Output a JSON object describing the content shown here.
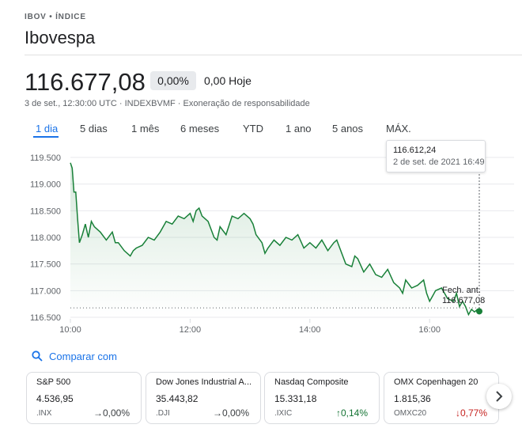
{
  "header": {
    "breadcrumb": "IBOV • ÍNDICE",
    "title": "Ibovespa"
  },
  "quote": {
    "price": "116.677,08",
    "change_pct": "0,00%",
    "change_abs": "0,00 Hoje",
    "meta": "3 de set., 12:30:00 UTC · INDEXBVMF · Exoneração de responsabilidade"
  },
  "range_tabs": [
    "1 dia",
    "5 dias",
    "1 mês",
    "6 meses",
    "YTD",
    "1 ano",
    "5 anos",
    "MÁX."
  ],
  "active_tab": "1 dia",
  "tooltip": {
    "value": "116.612,24",
    "date": "2 de set. de 2021 16:49"
  },
  "prev_close": {
    "label": "Fech. ant.",
    "value": "116.677,08"
  },
  "compare_label": "Comparar com",
  "cards": [
    {
      "name": "S&P 500",
      "price": "4.536,95",
      "symbol": ".INX",
      "change": "→0,00%",
      "direction": "neutral"
    },
    {
      "name": "Dow Jones Industrial A...",
      "price": "35.443,82",
      "symbol": ".DJI",
      "change": "→0,00%",
      "direction": "neutral"
    },
    {
      "name": "Nasdaq Composite",
      "price": "15.331,18",
      "symbol": ".IXIC",
      "change": "↑0,14%",
      "direction": "up"
    },
    {
      "name": "OMX Copenhagen 20",
      "price": "1.815,36",
      "symbol": "OMXC20",
      "change": "↓0,77%",
      "direction": "down"
    }
  ],
  "colors": {
    "line": "#188038",
    "accent": "#1a73e8",
    "up": "#137333",
    "down": "#c5221f"
  },
  "chart_data": {
    "type": "line",
    "x_ticks": [
      "10:00",
      "12:00",
      "14:00",
      "16:00"
    ],
    "y_ticks": [
      "119.500",
      "119.000",
      "118.500",
      "118.000",
      "117.500",
      "117.000",
      "116.500"
    ],
    "ylim": [
      116500,
      119500
    ],
    "xlim": [
      10.0,
      16.83
    ],
    "reference_line": 116677.08,
    "series": [
      {
        "points": [
          [
            10.0,
            119400
          ],
          [
            10.03,
            119300
          ],
          [
            10.06,
            118850
          ],
          [
            10.09,
            118850
          ],
          [
            10.12,
            118350
          ],
          [
            10.15,
            117900
          ],
          [
            10.2,
            118050
          ],
          [
            10.25,
            118250
          ],
          [
            10.3,
            118000
          ],
          [
            10.35,
            118300
          ],
          [
            10.4,
            118200
          ],
          [
            10.5,
            118100
          ],
          [
            10.6,
            117950
          ],
          [
            10.7,
            118100
          ],
          [
            10.75,
            117900
          ],
          [
            10.8,
            117900
          ],
          [
            10.9,
            117750
          ],
          [
            11.0,
            117650
          ],
          [
            11.05,
            117750
          ],
          [
            11.1,
            117800
          ],
          [
            11.2,
            117850
          ],
          [
            11.3,
            118000
          ],
          [
            11.4,
            117950
          ],
          [
            11.5,
            118100
          ],
          [
            11.6,
            118300
          ],
          [
            11.7,
            118250
          ],
          [
            11.8,
            118400
          ],
          [
            11.9,
            118350
          ],
          [
            12.0,
            118450
          ],
          [
            12.05,
            118300
          ],
          [
            12.1,
            118500
          ],
          [
            12.15,
            118550
          ],
          [
            12.2,
            118400
          ],
          [
            12.3,
            118300
          ],
          [
            12.4,
            118000
          ],
          [
            12.45,
            117950
          ],
          [
            12.5,
            118200
          ],
          [
            12.6,
            118050
          ],
          [
            12.7,
            118400
          ],
          [
            12.8,
            118350
          ],
          [
            12.9,
            118450
          ],
          [
            13.0,
            118350
          ],
          [
            13.05,
            118250
          ],
          [
            13.1,
            118050
          ],
          [
            13.2,
            117900
          ],
          [
            13.25,
            117700
          ],
          [
            13.3,
            117800
          ],
          [
            13.4,
            117950
          ],
          [
            13.5,
            117850
          ],
          [
            13.6,
            118000
          ],
          [
            13.7,
            117950
          ],
          [
            13.8,
            118050
          ],
          [
            13.9,
            117800
          ],
          [
            14.0,
            117900
          ],
          [
            14.1,
            117800
          ],
          [
            14.2,
            117950
          ],
          [
            14.3,
            117750
          ],
          [
            14.4,
            117900
          ],
          [
            14.45,
            117950
          ],
          [
            14.5,
            117800
          ],
          [
            14.6,
            117500
          ],
          [
            14.7,
            117450
          ],
          [
            14.75,
            117650
          ],
          [
            14.8,
            117600
          ],
          [
            14.9,
            117350
          ],
          [
            15.0,
            117500
          ],
          [
            15.1,
            117300
          ],
          [
            15.2,
            117250
          ],
          [
            15.3,
            117400
          ],
          [
            15.4,
            117150
          ],
          [
            15.5,
            117050
          ],
          [
            15.55,
            116950
          ],
          [
            15.6,
            117200
          ],
          [
            15.7,
            117050
          ],
          [
            15.8,
            117100
          ],
          [
            15.9,
            117200
          ],
          [
            15.95,
            116950
          ],
          [
            16.0,
            116800
          ],
          [
            16.05,
            116900
          ],
          [
            16.1,
            117000
          ],
          [
            16.2,
            117050
          ],
          [
            16.3,
            116850
          ],
          [
            16.4,
            116800
          ],
          [
            16.45,
            116950
          ],
          [
            16.5,
            116700
          ],
          [
            16.55,
            116800
          ],
          [
            16.6,
            116700
          ],
          [
            16.65,
            116550
          ],
          [
            16.7,
            116650
          ],
          [
            16.75,
            116600
          ],
          [
            16.8,
            116650
          ],
          [
            16.83,
            116612
          ]
        ]
      }
    ]
  }
}
